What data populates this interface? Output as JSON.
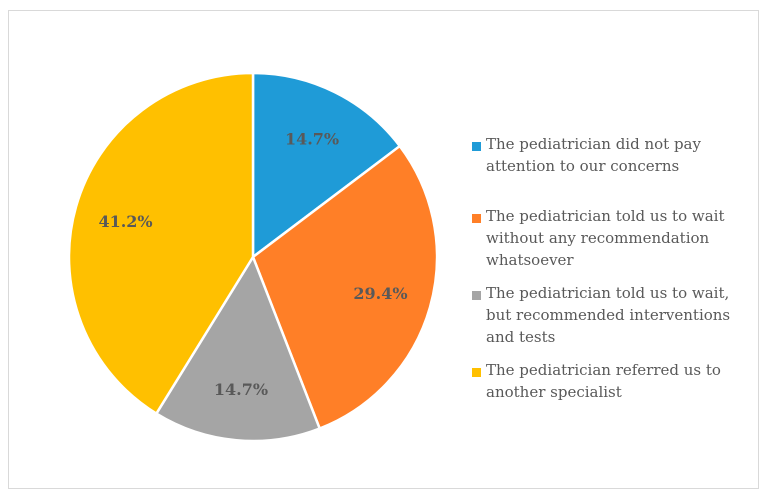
{
  "chart_data": {
    "type": "pie",
    "slices": [
      {
        "label": "The pediatrician did not pay attention to our concerns",
        "value": 14.7,
        "display": "14.7%",
        "color": "#1f9bd7"
      },
      {
        "label": "The pediatrician told us to wait without any recommendation whatsoever",
        "value": 29.4,
        "display": "29.4%",
        "color": "#ff7f27"
      },
      {
        "label": "The pediatrician told us to wait, but recommended interventions and tests",
        "value": 14.7,
        "display": "14.7%",
        "color": "#a5a5a5"
      },
      {
        "label": "The pediatrician referred us to another specialist",
        "value": 41.2,
        "display": "41.2%",
        "color": "#ffc000"
      }
    ],
    "legend_position": "right"
  }
}
